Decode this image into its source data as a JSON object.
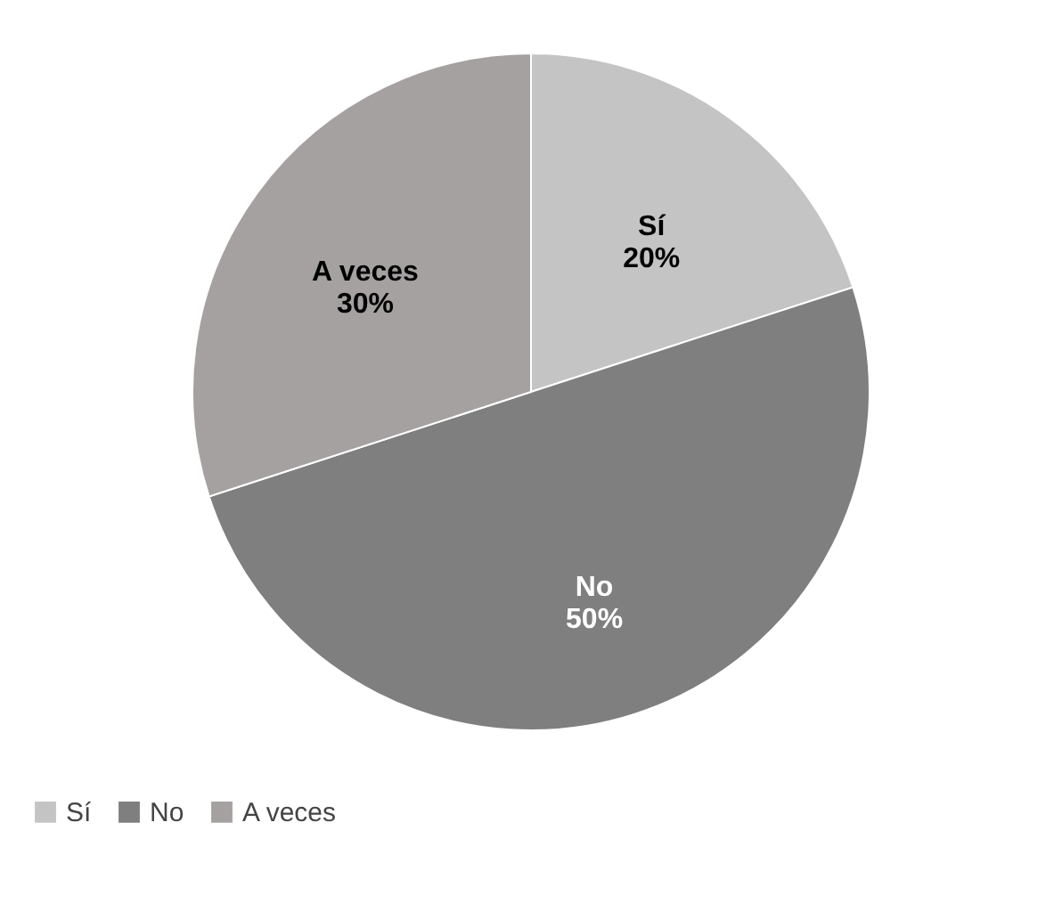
{
  "chart_data": {
    "type": "pie",
    "categories": [
      "Sí",
      "No",
      "A veces"
    ],
    "values": [
      20,
      50,
      30
    ],
    "value_labels": [
      "20%",
      "50%",
      "30%"
    ],
    "colors": [
      "#c4c4c4",
      "#7f7f7f",
      "#a5a1a1"
    ],
    "legend": "bottom"
  }
}
